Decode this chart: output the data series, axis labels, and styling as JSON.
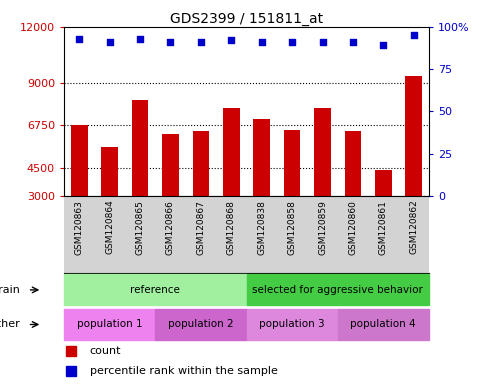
{
  "title": "GDS2399 / 151811_at",
  "samples": [
    "GSM120863",
    "GSM120864",
    "GSM120865",
    "GSM120866",
    "GSM120867",
    "GSM120868",
    "GSM120838",
    "GSM120858",
    "GSM120859",
    "GSM120860",
    "GSM120861",
    "GSM120862"
  ],
  "counts": [
    6750,
    5600,
    8100,
    6300,
    6450,
    7700,
    7100,
    6500,
    7700,
    6450,
    4400,
    9400
  ],
  "percentile_ranks": [
    93,
    91,
    93,
    91,
    91,
    92,
    91,
    91,
    91,
    91,
    89,
    95
  ],
  "ylim_left": [
    3000,
    12000
  ],
  "ylim_right": [
    0,
    100
  ],
  "yticks_left": [
    3000,
    4500,
    6750,
    9000,
    12000
  ],
  "yticks_left_labels": [
    "3000",
    "4500",
    "6750",
    "9000",
    "12000"
  ],
  "yticks_right": [
    0,
    25,
    50,
    75,
    100
  ],
  "yticks_right_labels": [
    "0",
    "25",
    "50",
    "75",
    "100%"
  ],
  "hgrid_values": [
    4500,
    6750,
    9000
  ],
  "bar_color": "#cc0000",
  "dot_color": "#0000cc",
  "bar_width": 0.55,
  "strain_groups": [
    {
      "label": "reference",
      "xstart": -0.5,
      "xend": 5.5,
      "color": "#a0f0a0"
    },
    {
      "label": "selected for aggressive behavior",
      "xstart": 5.5,
      "xend": 11.5,
      "color": "#44cc44"
    }
  ],
  "other_groups": [
    {
      "label": "population 1",
      "xstart": -0.5,
      "xend": 2.5,
      "color": "#ee82ee"
    },
    {
      "label": "population 2",
      "xstart": 2.5,
      "xend": 5.5,
      "color": "#cc66cc"
    },
    {
      "label": "population 3",
      "xstart": 5.5,
      "xend": 8.5,
      "color": "#dd88dd"
    },
    {
      "label": "population 4",
      "xstart": 8.5,
      "xend": 11.5,
      "color": "#cc77cc"
    }
  ],
  "tick_bg_color": "#d3d3d3",
  "strain_label": "strain",
  "other_label": "other",
  "legend_count_label": "count",
  "legend_pct_label": "percentile rank within the sample"
}
